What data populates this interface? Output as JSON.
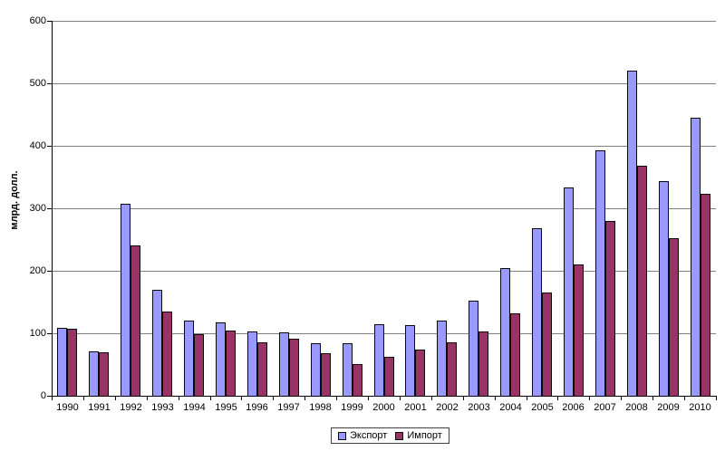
{
  "chart_data": {
    "type": "bar",
    "title": "",
    "xlabel": "",
    "ylabel": "млрд. долл.",
    "categories": [
      "1990",
      "1991",
      "1992",
      "1993",
      "1994",
      "1995",
      "1996",
      "1997",
      "1998",
      "1999",
      "2000",
      "2001",
      "2002",
      "2003",
      "2004",
      "2005",
      "2006",
      "2007",
      "2008",
      "2009",
      "2010"
    ],
    "series": [
      {
        "name": "Экспорт",
        "color": "#9999FF",
        "values": [
          108,
          71,
          307,
          170,
          120,
          117,
          103,
          101,
          84,
          84,
          114,
          113,
          121,
          152,
          205,
          268,
          333,
          393,
          520,
          343,
          445
        ]
      },
      {
        "name": "Импорт",
        "color": "#993366",
        "values": [
          107,
          70,
          241,
          135,
          99,
          104,
          86,
          91,
          68,
          51,
          62,
          74,
          85,
          103,
          132,
          165,
          210,
          280,
          368,
          252,
          323
        ]
      }
    ],
    "ylim": [
      0,
      600
    ],
    "y_ticks": [
      0,
      100,
      200,
      300,
      400,
      500,
      600
    ],
    "grid": true,
    "legend_position": "bottom-center"
  },
  "colors": {
    "background": "#FFFFFF",
    "gridline": "#808080",
    "axis": "#000000",
    "bar_border": "#0A0A0A",
    "export_fill": "#9999FF",
    "import_fill": "#993366"
  }
}
